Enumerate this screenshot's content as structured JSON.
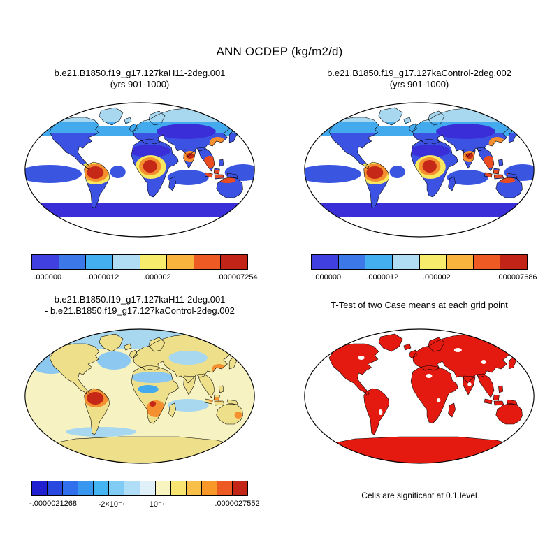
{
  "figure": {
    "main_title": "ANN OCDEP (kg/m2/d)",
    "background": "#ffffff"
  },
  "palette": {
    "deep_blue": "#3a2ed8",
    "blue": "#3b52e2",
    "mid_blue": "#3a55e0",
    "cyan": "#44aaee",
    "light_blue": "#a8d8f0",
    "pale_blue": "#8cc8f0",
    "pale_yellow": "#f7f2c2",
    "tan_yellow": "#eedf8a",
    "yellow": "#f8e860",
    "orange": "#f59030",
    "orange_red": "#e84c20",
    "red": "#c62818",
    "bright_red": "#e41a10",
    "white": "#ffffff"
  },
  "panels": [
    {
      "id": "case1",
      "map_type": "case",
      "title_lines": [
        "b.e21.B1850.f19_g17.127kaH11-2deg.001",
        "(yrs 901-1000)"
      ],
      "colorbar": {
        "colors": [
          "#4040e0",
          "#3c78e8",
          "#44aff0",
          "#b0dcf4",
          "#f8ec6c",
          "#f8b43c",
          "#ee5a24",
          "#c22418"
        ],
        "labels": [
          ".000000",
          ".0000012",
          ".000002",
          ".000007254"
        ],
        "label_positions_pct": [
          7.5,
          33,
          58,
          95
        ]
      }
    },
    {
      "id": "case2",
      "map_type": "case",
      "title_lines": [
        "b.e21.B1850.f19_g17.127kaControl-2deg.002",
        "(yrs 901-1000)"
      ],
      "colorbar": {
        "colors": [
          "#4040e0",
          "#3c78e8",
          "#44aff0",
          "#b0dcf4",
          "#f8ec6c",
          "#f8b43c",
          "#ee5a24",
          "#c22418"
        ],
        "labels": [
          ".000000",
          ".0000012",
          ".000002",
          ".000007686"
        ],
        "label_positions_pct": [
          7.5,
          33,
          58,
          95
        ]
      }
    },
    {
      "id": "diff",
      "map_type": "diff",
      "title_lines": [
        "b.e21.B1850.f19_g17.127kaH11-2deg.001",
        "- b.e21.B1850.f19_g17.127kaControl-2deg.002"
      ],
      "colorbar": {
        "colors": [
          "#2020d0",
          "#2848e0",
          "#3070ec",
          "#3898f0",
          "#44b4f2",
          "#80ccf4",
          "#b0def6",
          "#e0f0f8",
          "#f8f4c0",
          "#f8e470",
          "#f8c048",
          "#f89828",
          "#ee5a24",
          "#c22418"
        ],
        "labels": [
          "-.0000021268",
          "-2×10⁻⁷",
          "10⁻⁷",
          ".0000027552"
        ],
        "label_positions_pct": [
          10,
          37,
          58,
          95
        ]
      }
    },
    {
      "id": "ttest",
      "map_type": "ttest",
      "title_lines": [
        "T-Test of two Case means at each grid point"
      ],
      "caption": "Cells are significant at 0.1 level"
    }
  ],
  "chart_data": [
    {
      "type": "heatmap",
      "subtype": "global-map-robinson",
      "title": "b.e21.B1850.f19_g17.127kaH11-2deg.001 (yrs 901-1000)",
      "variable": "ANN OCDEP (kg/m2/d)",
      "min": 0.0,
      "max": 7.254e-06,
      "colorbar_tick_labels": [
        ".000000",
        ".0000012",
        ".000002",
        ".000007254"
      ],
      "legend_position": "bottom",
      "high_regions": [
        "Amazon basin",
        "Central Africa",
        "India",
        "Southeast Asia",
        "East China",
        "Maritime Continent",
        "Northern Australia"
      ],
      "low_regions": [
        "Sahara",
        "Central Eurasia",
        "Subtropical oceans"
      ]
    },
    {
      "type": "heatmap",
      "subtype": "global-map-robinson",
      "title": "b.e21.B1850.f19_g17.127kaControl-2deg.002 (yrs 901-1000)",
      "variable": "ANN OCDEP (kg/m2/d)",
      "min": 0.0,
      "max": 7.686e-06,
      "colorbar_tick_labels": [
        ".000000",
        ".0000012",
        ".000002",
        ".000007686"
      ],
      "legend_position": "bottom",
      "high_regions": [
        "Amazon basin",
        "Central Africa",
        "India",
        "Southeast Asia",
        "East China",
        "Maritime Continent",
        "Northern Australia"
      ],
      "low_regions": [
        "Sahara",
        "Central Eurasia",
        "Subtropical oceans"
      ]
    },
    {
      "type": "heatmap",
      "subtype": "global-map-robinson-difference",
      "title": "b.e21.B1850.f19_g17.127kaH11-2deg.001 - b.e21.B1850.f19_g17.127kaControl-2deg.002",
      "variable": "ANN OCDEP difference (kg/m2/d)",
      "min": -2.1268e-06,
      "max": 2.7552e-06,
      "colorbar_tick_labels": [
        "-.0000021268",
        "-2×10⁻⁷",
        "10⁻⁷",
        ".0000027552"
      ],
      "legend_position": "bottom",
      "high_regions": [
        "Amazon basin",
        "Southern Africa",
        "East Asia coast"
      ],
      "low_regions": [
        "North Africa",
        "Central Asia",
        "North Atlantic",
        "North Pacific"
      ]
    },
    {
      "type": "heatmap",
      "subtype": "significance-mask",
      "title": "T-Test of two Case means at each grid point",
      "note": "Cells are significant at 0.1 level",
      "significant_color": "#e41a10",
      "significant_regions": [
        "nearly all land areas",
        "Antarctica"
      ]
    }
  ]
}
